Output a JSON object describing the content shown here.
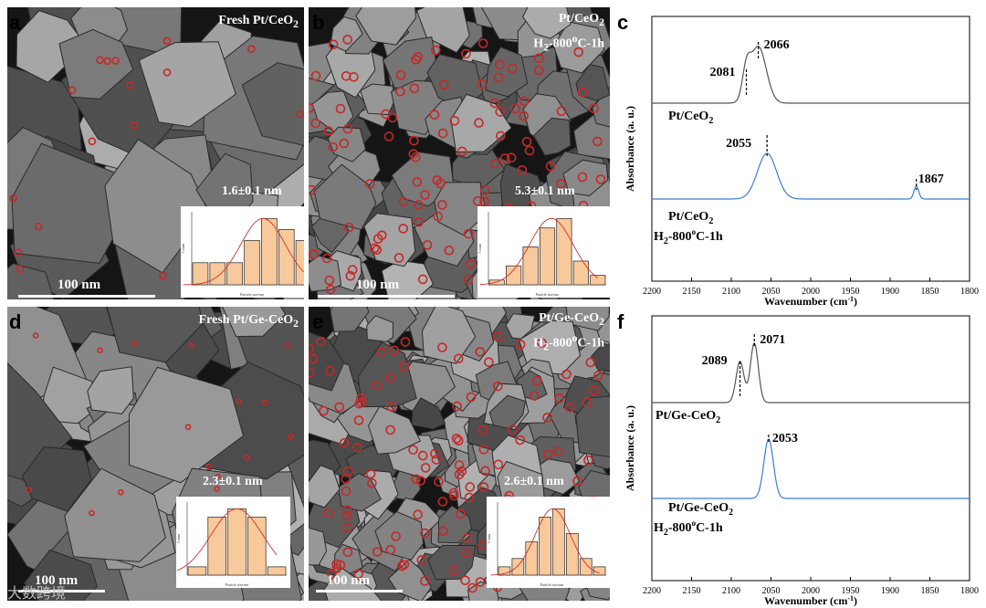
{
  "panels": {
    "a": {
      "letter": "a",
      "title": "Fresh Pt/CeO",
      "title_sub": "2",
      "size_label": "1.6±0.1 nm",
      "scale": "100 nm",
      "hist": {
        "xlabel": "Particle size/nm",
        "ylabel": "Count",
        "values": [
          2,
          2,
          2,
          4,
          6,
          5,
          4
        ]
      }
    },
    "b": {
      "letter": "b",
      "title_line1": "Pt/CeO",
      "title_line1_sub": "2",
      "title_line2_h": "H",
      "title_line2_sub": "2",
      "title_line2_rest": "-800",
      "title_line2_sup": "o",
      "title_line2_end": "C-1h",
      "size_label": "5.3±0.1 nm",
      "scale": "100 nm",
      "hist": {
        "xlabel": "Particle size/nm",
        "ylabel": "Count",
        "values": [
          1,
          4,
          8,
          12,
          14,
          5,
          2
        ]
      }
    },
    "d": {
      "letter": "d",
      "title": "Fresh Pt/Ge-CeO",
      "title_sub": "2",
      "size_label": "2.3±0.1 nm",
      "scale": "100 nm",
      "hist": {
        "xlabel": "Particle size/nm",
        "ylabel": "Count",
        "values": [
          1,
          7,
          8,
          7,
          1
        ]
      }
    },
    "e": {
      "letter": "e",
      "title_line1": "Pt/Ge-CeO",
      "title_line1_sub": "2",
      "title_line2_h": "H",
      "title_line2_sub": "2",
      "title_line2_rest": "-800",
      "title_line2_sup": "o",
      "title_line2_end": "C-1h",
      "size_label": "2.6±0.1 nm",
      "scale": "100 nm",
      "hist": {
        "xlabel": "Particle size/nm",
        "ylabel": "Count",
        "values": [
          1,
          2,
          4,
          7,
          8,
          5,
          2,
          1
        ]
      }
    }
  },
  "ir_c": {
    "letter": "c",
    "ylabel": "Absorbance (a. u.)",
    "xlabel": "Wavenumber (cm",
    "xlabel_sup": "-1",
    "xlabel_end": ")",
    "xticks": [
      "2200",
      "2150",
      "2100",
      "2050",
      "2000",
      "1950",
      "1900",
      "1850",
      "1800"
    ],
    "top": {
      "label": "Pt/CeO",
      "label_sub": "2",
      "color": "#555555",
      "peaks": [
        "2081",
        "2066"
      ]
    },
    "bottom": {
      "label1": "Pt/CeO",
      "label1_sub": "2",
      "label2_h": "H",
      "label2_sub": "2",
      "label2_rest": "-800",
      "label2_sup": "o",
      "label2_end": "C-1h",
      "color": "#3d7dd6",
      "peaks": [
        "2055",
        "1867"
      ]
    }
  },
  "ir_f": {
    "letter": "f",
    "ylabel": "Absorbance (a. u.)",
    "xlabel": "Wavenumber (cm",
    "xlabel_sup": "-1",
    "xlabel_end": ")",
    "xticks": [
      "2200",
      "2150",
      "2100",
      "2050",
      "2000",
      "1950",
      "1900",
      "1850",
      "1800"
    ],
    "top": {
      "label": "Pt/Ge-CeO",
      "label_sub": "2",
      "color": "#555555",
      "peaks": [
        "2089",
        "2071"
      ]
    },
    "bottom": {
      "label1": "Pt/Ge-CeO",
      "label1_sub": "2",
      "label2_h": "H",
      "label2_sub": "2",
      "label2_rest": "-800",
      "label2_sup": "o",
      "label2_end": "C-1h",
      "color": "#3d7dd6",
      "peaks": [
        "2053"
      ]
    }
  },
  "chart_data": [
    {
      "type": "bar",
      "panel": "a",
      "categories": [
        "1",
        "2",
        "3",
        "4",
        "5",
        "6",
        "7"
      ],
      "values": [
        2,
        2,
        2,
        4,
        6,
        5,
        4
      ],
      "xlabel": "Particle size/nm",
      "ylabel": "Count"
    },
    {
      "type": "bar",
      "panel": "b",
      "categories": [
        "1",
        "2",
        "3",
        "4",
        "5",
        "6",
        "7"
      ],
      "values": [
        1,
        4,
        8,
        12,
        14,
        5,
        2
      ],
      "xlabel": "Particle size/nm",
      "ylabel": "Count"
    },
    {
      "type": "bar",
      "panel": "d",
      "categories": [
        "1",
        "2",
        "3",
        "4",
        "5"
      ],
      "values": [
        1,
        7,
        8,
        7,
        1
      ],
      "xlabel": "Particle size/nm",
      "ylabel": "Count"
    },
    {
      "type": "bar",
      "panel": "e",
      "categories": [
        "1",
        "2",
        "3",
        "4",
        "5",
        "6",
        "7",
        "8"
      ],
      "values": [
        1,
        2,
        4,
        7,
        8,
        5,
        2,
        1
      ],
      "xlabel": "Particle size/nm",
      "ylabel": "Count"
    },
    {
      "type": "line",
      "panel": "c",
      "xlabel": "Wavenumber (cm-1)",
      "ylabel": "Absorbance (a. u.)",
      "xlim": [
        2200,
        1800
      ],
      "series": [
        {
          "name": "Pt/CeO2",
          "peaks": [
            2081,
            2066
          ]
        },
        {
          "name": "Pt/CeO2 H2-800oC-1h",
          "peaks": [
            2055,
            1867
          ]
        }
      ]
    },
    {
      "type": "line",
      "panel": "f",
      "xlabel": "Wavenumber (cm-1)",
      "ylabel": "Absorbance (a. u.)",
      "xlim": [
        2200,
        1800
      ],
      "series": [
        {
          "name": "Pt/Ge-CeO2",
          "peaks": [
            2089,
            2071
          ]
        },
        {
          "name": "Pt/Ge-CeO2 H2-800oC-1h",
          "peaks": [
            2053
          ]
        }
      ]
    }
  ],
  "watermark": "大数跨境"
}
